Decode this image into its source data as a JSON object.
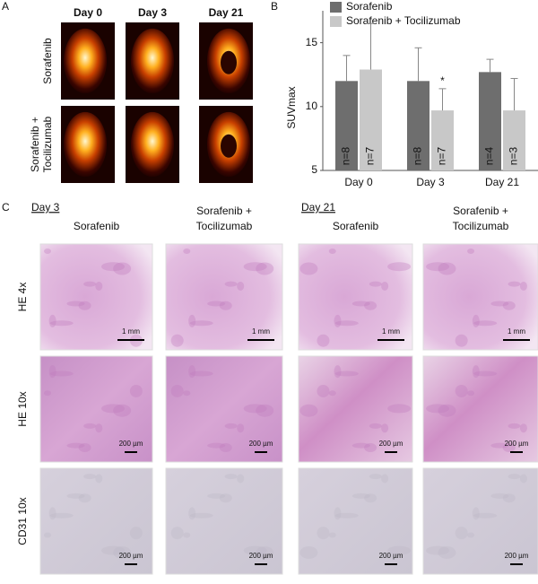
{
  "panel_a": {
    "label": "A",
    "columns": [
      "Day 0",
      "Day 3",
      "Day 21"
    ],
    "rows": [
      [
        "Sorafenib"
      ],
      [
        "Sorafenib +",
        "Tocilizumab"
      ]
    ]
  },
  "chart_data": {
    "type": "bar",
    "label": "B",
    "y_label": "SUVmax",
    "categories": [
      "Day 0",
      "Day 3",
      "Day 21"
    ],
    "series": [
      {
        "name": "Sorafenib",
        "color": "#6e6e6e",
        "values": [
          12.0,
          12.0,
          12.7
        ],
        "errors": [
          2.0,
          2.6,
          1.0
        ],
        "sample_labels": [
          "n=8",
          "n=8",
          "n=4"
        ]
      },
      {
        "name": "Sorafenib + Tocilizumab",
        "color": "#c8c8c8",
        "values": [
          12.9,
          9.7,
          9.7
        ],
        "errors": [
          3.6,
          1.7,
          2.5
        ],
        "sample_labels": [
          "n=7",
          "n=7",
          "n=3"
        ]
      }
    ],
    "annotations": [
      {
        "text": "*",
        "category": 1,
        "series": 1
      }
    ],
    "ylim": [
      5,
      17.5
    ],
    "yticks": [
      5,
      10,
      15
    ]
  },
  "panel_c": {
    "label": "C",
    "groups": [
      {
        "day": "Day 3",
        "columns": [
          [
            "Sorafenib"
          ],
          [
            "Sorafenib +",
            "Tocilizumab"
          ]
        ]
      },
      {
        "day": "Day 21",
        "columns": [
          [
            "Sorafenib"
          ],
          [
            "Sorafenib +",
            "Tocilizumab"
          ]
        ]
      }
    ],
    "rows": [
      {
        "label": "HE 4x",
        "scale_bar": "1 mm"
      },
      {
        "label": "HE 10x",
        "scale_bar": "200 µm"
      },
      {
        "label": "CD31  10x",
        "scale_bar": "200 µm"
      }
    ]
  }
}
